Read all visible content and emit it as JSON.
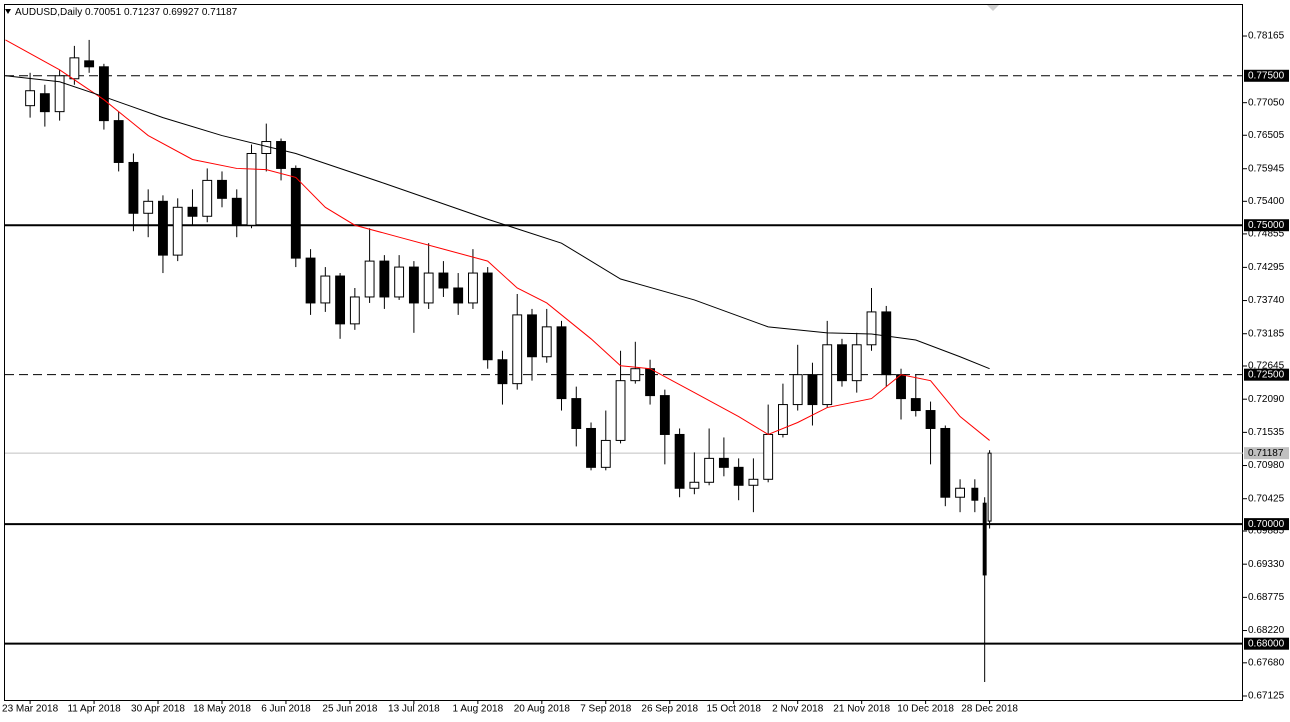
{
  "chart_data": {
    "type": "candlestick",
    "title": "AUDUSD,Daily",
    "xlim": [
      -5.1,
      246.5
    ],
    "ylim": [
      0.67058,
      0.78684
    ],
    "xticks": [
      {
        "value": 0,
        "label": "23 Mar 2018"
      },
      {
        "value": 13,
        "label": "11 Apr 2018"
      },
      {
        "value": 26,
        "label": "30 Apr 2018"
      },
      {
        "value": 39,
        "label": "18 May 2018"
      },
      {
        "value": 52,
        "label": "6 Jun 2018"
      },
      {
        "value": 65,
        "label": "25 Jun 2018"
      },
      {
        "value": 78,
        "label": "13 Jul 2018"
      },
      {
        "value": 91,
        "label": "1 Aug 2018"
      },
      {
        "value": 104,
        "label": "20 Aug 2018"
      },
      {
        "value": 117,
        "label": "7 Sep 2018"
      },
      {
        "value": 130,
        "label": "26 Sep 2018"
      },
      {
        "value": 143,
        "label": "15 Oct 2018"
      },
      {
        "value": 156,
        "label": "2 Nov 2018"
      },
      {
        "value": 169,
        "label": "21 Nov 2018"
      },
      {
        "value": 182,
        "label": "10 Dec 2018"
      },
      {
        "value": 195,
        "label": "28 Dec 2018"
      }
    ],
    "yticks": [
      0.78165,
      {
        "value": 0.7705,
        "label": "0.77050"
      },
      0.76505,
      0.75945,
      {
        "value": 0.754,
        "label": "0.75400"
      },
      0.74855,
      0.74295,
      {
        "value": 0.7374,
        "label": "0.73740"
      },
      0.73185,
      0.72645,
      {
        "value": 0.7209,
        "label": "0.72090"
      },
      0.71535,
      {
        "value": 0.7098,
        "label": "0.70980"
      },
      0.70425,
      0.69885,
      {
        "value": 0.6933,
        "label": "0.69330"
      },
      0.68775,
      {
        "value": 0.6822,
        "label": "0.68220"
      },
      {
        "value": 0.6768,
        "label": "0.67680"
      },
      0.67125
    ],
    "levels": [
      {
        "value": 0.775,
        "label": "0.77500",
        "style": "dashed"
      },
      {
        "value": 0.75,
        "label": "0.75000",
        "style": "solid"
      },
      {
        "value": 0.725,
        "label": "0.72500",
        "style": "dashed"
      },
      {
        "value": 0.7,
        "label": "0.70000",
        "style": "solid"
      },
      {
        "value": 0.68,
        "label": "0.68000",
        "style": "solid"
      }
    ],
    "price_line_color": "#c0c0c0",
    "candles": {
      "x": [
        0,
        3,
        6,
        9,
        12,
        15,
        18,
        21,
        24,
        27,
        30,
        33,
        36,
        39,
        42,
        45,
        48,
        51,
        54,
        57,
        60,
        63,
        66,
        69,
        72,
        75,
        78,
        81,
        84,
        87,
        90,
        93,
        96,
        99,
        102,
        105,
        108,
        111,
        114,
        117,
        120,
        123,
        126,
        129,
        132,
        135,
        138,
        141,
        144,
        147,
        150,
        153,
        156,
        159,
        162,
        165,
        168,
        171,
        174,
        177,
        180,
        183,
        186,
        189,
        192,
        194,
        195
      ],
      "open": [
        0.77,
        0.772,
        0.769,
        0.7745,
        0.7775,
        0.7765,
        0.7675,
        0.7605,
        0.752,
        0.754,
        0.745,
        0.753,
        0.7515,
        0.7575,
        0.7545,
        0.75,
        0.762,
        0.764,
        0.7595,
        0.7445,
        0.737,
        0.7415,
        0.7335,
        0.738,
        0.744,
        0.738,
        0.743,
        0.737,
        0.742,
        0.7395,
        0.737,
        0.742,
        0.7275,
        0.7235,
        0.735,
        0.728,
        0.733,
        0.721,
        0.716,
        0.7095,
        0.714,
        0.724,
        0.726,
        0.7215,
        0.715,
        0.706,
        0.707,
        0.711,
        0.7095,
        0.7065,
        0.7075,
        0.715,
        0.72,
        0.725,
        0.72,
        0.73,
        0.724,
        0.73,
        0.7355,
        0.725,
        0.721,
        0.719,
        0.716,
        0.7045,
        0.706,
        0.7035,
        0.70051
      ],
      "high": [
        0.7755,
        0.7735,
        0.776,
        0.78,
        0.781,
        0.777,
        0.769,
        0.762,
        0.756,
        0.755,
        0.7545,
        0.756,
        0.7595,
        0.759,
        0.756,
        0.7635,
        0.767,
        0.7645,
        0.76,
        0.746,
        0.743,
        0.742,
        0.7395,
        0.7495,
        0.745,
        0.745,
        0.744,
        0.747,
        0.744,
        0.742,
        0.746,
        0.743,
        0.729,
        0.7385,
        0.736,
        0.736,
        0.734,
        0.723,
        0.717,
        0.719,
        0.729,
        0.7305,
        0.7275,
        0.7225,
        0.716,
        0.712,
        0.716,
        0.7145,
        0.711,
        0.711,
        0.72,
        0.7235,
        0.73,
        0.727,
        0.734,
        0.731,
        0.732,
        0.7395,
        0.7365,
        0.726,
        0.725,
        0.7205,
        0.7165,
        0.7075,
        0.7075,
        0.7045,
        0.71237
      ],
      "low": [
        0.768,
        0.7665,
        0.7675,
        0.7735,
        0.7755,
        0.766,
        0.759,
        0.749,
        0.748,
        0.742,
        0.744,
        0.75,
        0.7505,
        0.753,
        0.748,
        0.7495,
        0.759,
        0.7575,
        0.743,
        0.735,
        0.7355,
        0.731,
        0.7325,
        0.737,
        0.736,
        0.7375,
        0.732,
        0.736,
        0.738,
        0.735,
        0.736,
        0.726,
        0.72,
        0.7225,
        0.724,
        0.727,
        0.719,
        0.713,
        0.709,
        0.709,
        0.7135,
        0.7235,
        0.72,
        0.71,
        0.7045,
        0.705,
        0.7065,
        0.708,
        0.704,
        0.702,
        0.707,
        0.7145,
        0.719,
        0.7165,
        0.7195,
        0.723,
        0.722,
        0.729,
        0.723,
        0.7175,
        0.718,
        0.71,
        0.703,
        0.702,
        0.702,
        0.6736,
        0.69927
      ],
      "close": [
        0.7725,
        0.769,
        0.775,
        0.778,
        0.7765,
        0.7675,
        0.7605,
        0.752,
        0.754,
        0.745,
        0.753,
        0.7515,
        0.7575,
        0.7545,
        0.75,
        0.762,
        0.764,
        0.7595,
        0.7445,
        0.737,
        0.7415,
        0.7335,
        0.738,
        0.744,
        0.738,
        0.743,
        0.737,
        0.742,
        0.7395,
        0.737,
        0.742,
        0.7275,
        0.7235,
        0.735,
        0.728,
        0.733,
        0.721,
        0.716,
        0.7095,
        0.714,
        0.724,
        0.726,
        0.7215,
        0.715,
        0.706,
        0.707,
        0.711,
        0.7095,
        0.7065,
        0.7075,
        0.715,
        0.72,
        0.725,
        0.72,
        0.73,
        0.724,
        0.73,
        0.7355,
        0.725,
        0.721,
        0.719,
        0.716,
        0.7045,
        0.706,
        0.704,
        0.6915,
        0.71187
      ]
    },
    "ma_lines": [
      {
        "color": "#ff0000",
        "x": [
          -5,
          6,
          15,
          24,
          33,
          42,
          48,
          54,
          60,
          66,
          75,
          84,
          93,
          99,
          105,
          114,
          120,
          126,
          135,
          144,
          150,
          156,
          162,
          171,
          177,
          183,
          189,
          195
        ],
        "values": [
          0.781,
          0.776,
          0.771,
          0.765,
          0.761,
          0.7595,
          0.7593,
          0.758,
          0.753,
          0.75,
          0.748,
          0.746,
          0.744,
          0.7395,
          0.737,
          0.731,
          0.7265,
          0.726,
          0.722,
          0.718,
          0.715,
          0.717,
          0.7195,
          0.721,
          0.725,
          0.724,
          0.718,
          0.714
        ]
      },
      {
        "color": "#000000",
        "x": [
          -5,
          6,
          15,
          27,
          39,
          54,
          72,
          93,
          108,
          120,
          135,
          150,
          162,
          171,
          180,
          189,
          195
        ],
        "values": [
          0.775,
          0.774,
          0.7715,
          0.768,
          0.765,
          0.762,
          0.757,
          0.751,
          0.747,
          0.741,
          0.7375,
          0.733,
          0.732,
          0.7318,
          0.7308,
          0.728,
          0.726
        ]
      }
    ]
  }
}
